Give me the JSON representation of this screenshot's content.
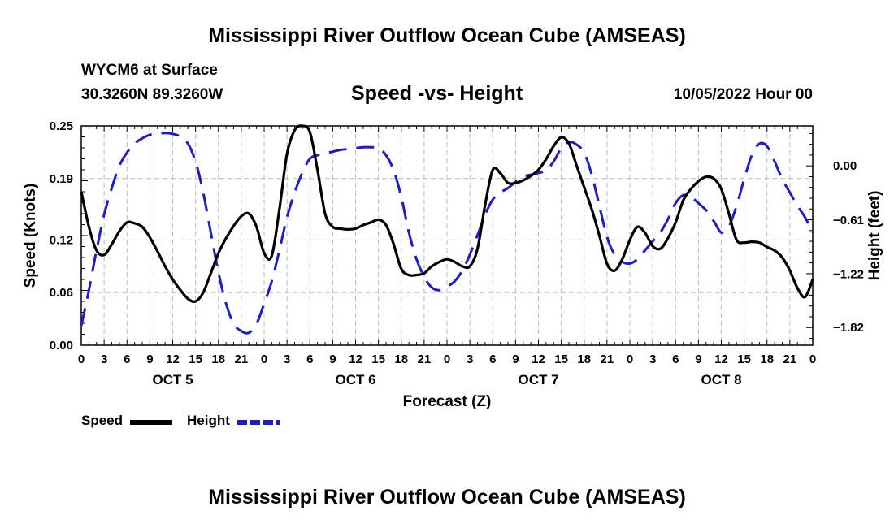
{
  "header": {
    "title": "Mississippi River Outflow Ocean Cube (AMSEAS)",
    "station": "WYCM6 at Surface",
    "coords": "30.3260N  89.3260W",
    "plot_title": "Speed -vs- Height",
    "datetime": "10/05/2022 Hour 00"
  },
  "footer": {
    "title": "Mississippi River Outflow Ocean Cube (AMSEAS)"
  },
  "legend": {
    "speed_label": "Speed",
    "height_label": "Height"
  },
  "colors": {
    "speed": "#000000",
    "height": "#1c1cc8",
    "grid": "#bbbbbb"
  },
  "chart_data": {
    "type": "line",
    "title": "Speed -vs- Height",
    "xlabel": "Forecast (Z)",
    "ylabel": "Speed (Knots)",
    "y2label": "Height (feet)",
    "x_range_hours": [
      0,
      96
    ],
    "x_ticks": [
      0,
      3,
      6,
      9,
      12,
      15,
      18,
      21,
      24,
      27,
      30,
      33,
      36,
      39,
      42,
      45,
      48,
      51,
      54,
      57,
      60,
      63,
      66,
      69,
      72,
      75,
      78,
      81,
      84,
      87,
      90,
      93,
      96
    ],
    "x_tick_labels": [
      "0",
      "3",
      "6",
      "9",
      "12",
      "15",
      "18",
      "21",
      "0",
      "3",
      "6",
      "9",
      "12",
      "15",
      "18",
      "21",
      "0",
      "3",
      "6",
      "9",
      "12",
      "15",
      "18",
      "21",
      "0",
      "3",
      "6",
      "9",
      "12",
      "15",
      "18",
      "21",
      "0"
    ],
    "day_labels": [
      {
        "label": "OCT 5",
        "hour": 12
      },
      {
        "label": "OCT 6",
        "hour": 36
      },
      {
        "label": "OCT 7",
        "hour": 60
      },
      {
        "label": "OCT 8",
        "hour": 84
      }
    ],
    "ylim": [
      0,
      0.25
    ],
    "y_ticks": [
      0.0,
      0.06,
      0.12,
      0.19,
      0.25
    ],
    "y_tick_labels": [
      "0.00",
      "0.06",
      "0.12",
      "0.19",
      "0.25"
    ],
    "y2lim": [
      -2.02,
      0.45
    ],
    "y2_ticks": [
      0.0,
      -0.61,
      -1.22,
      -1.82
    ],
    "y2_tick_labels": [
      "0.00",
      "−0.61",
      "−1.22",
      "−1.82"
    ],
    "grid": true,
    "series": [
      {
        "name": "Speed",
        "axis": "left",
        "x": [
          0,
          1,
          2,
          3,
          4,
          5,
          6,
          7,
          8,
          9,
          10,
          11,
          12,
          13,
          14,
          15,
          16,
          17,
          18,
          19,
          20,
          21,
          22,
          23,
          24,
          25,
          26,
          27,
          28,
          29,
          30,
          31,
          32,
          33,
          34,
          35,
          36,
          37,
          38,
          39,
          40,
          41,
          42,
          43,
          44,
          45,
          46,
          47,
          48,
          49,
          50,
          51,
          52,
          53,
          54,
          55,
          56,
          57,
          58,
          59,
          60,
          61,
          62,
          63,
          64,
          65,
          66,
          67,
          68,
          69,
          70,
          71,
          72,
          73,
          74,
          75,
          76,
          77,
          78,
          79,
          80,
          81,
          82,
          83,
          84,
          85,
          86,
          87,
          88,
          89,
          90,
          91,
          92,
          93,
          94,
          95,
          96
        ],
        "values": [
          0.175,
          0.135,
          0.108,
          0.103,
          0.115,
          0.13,
          0.14,
          0.139,
          0.135,
          0.123,
          0.107,
          0.09,
          0.075,
          0.063,
          0.053,
          0.05,
          0.06,
          0.082,
          0.105,
          0.122,
          0.136,
          0.147,
          0.15,
          0.135,
          0.105,
          0.102,
          0.155,
          0.218,
          0.245,
          0.25,
          0.243,
          0.2,
          0.15,
          0.135,
          0.133,
          0.132,
          0.133,
          0.137,
          0.14,
          0.143,
          0.137,
          0.115,
          0.087,
          0.08,
          0.08,
          0.082,
          0.09,
          0.095,
          0.098,
          0.095,
          0.09,
          0.09,
          0.11,
          0.16,
          0.2,
          0.196,
          0.185,
          0.185,
          0.188,
          0.193,
          0.2,
          0.212,
          0.227,
          0.237,
          0.23,
          0.205,
          0.18,
          0.155,
          0.125,
          0.093,
          0.085,
          0.098,
          0.12,
          0.135,
          0.128,
          0.113,
          0.11,
          0.122,
          0.14,
          0.165,
          0.178,
          0.187,
          0.192,
          0.19,
          0.178,
          0.15,
          0.12,
          0.117,
          0.118,
          0.117,
          0.112,
          0.108,
          0.1,
          0.085,
          0.065,
          0.055,
          0.075
        ]
      },
      {
        "name": "Height",
        "axis": "right",
        "x": [
          0,
          1,
          2,
          3,
          4,
          5,
          6,
          7,
          8,
          9,
          10,
          11,
          12,
          13,
          14,
          15,
          16,
          17,
          18,
          19,
          20,
          21,
          22,
          23,
          24,
          25,
          26,
          27,
          28,
          29,
          30,
          31,
          32,
          33,
          34,
          35,
          36,
          37,
          38,
          39,
          40,
          41,
          42,
          43,
          44,
          45,
          46,
          47,
          48,
          49,
          50,
          51,
          52,
          53,
          54,
          55,
          56,
          57,
          58,
          59,
          60,
          61,
          62,
          63,
          64,
          65,
          66,
          67,
          68,
          69,
          70,
          71,
          72,
          73,
          74,
          75,
          76,
          77,
          78,
          79,
          80,
          81,
          82,
          83,
          84,
          85,
          86,
          87,
          88,
          89,
          90,
          91,
          92,
          93,
          94,
          95,
          96
        ],
        "values": [
          -1.8,
          -1.4,
          -0.95,
          -0.55,
          -0.25,
          0.0,
          0.15,
          0.25,
          0.31,
          0.35,
          0.36,
          0.37,
          0.36,
          0.33,
          0.25,
          0.05,
          -0.3,
          -0.75,
          -1.2,
          -1.55,
          -1.78,
          -1.86,
          -1.88,
          -1.78,
          -1.55,
          -1.3,
          -0.95,
          -0.58,
          -0.3,
          -0.08,
          0.08,
          0.12,
          0.14,
          0.16,
          0.18,
          0.19,
          0.2,
          0.21,
          0.21,
          0.2,
          0.12,
          -0.05,
          -0.35,
          -0.75,
          -1.05,
          -1.25,
          -1.37,
          -1.4,
          -1.36,
          -1.3,
          -1.18,
          -1.0,
          -0.78,
          -0.55,
          -0.38,
          -0.3,
          -0.25,
          -0.18,
          -0.12,
          -0.1,
          -0.08,
          -0.05,
          0.05,
          0.2,
          0.27,
          0.24,
          0.15,
          -0.1,
          -0.45,
          -0.8,
          -1.0,
          -1.08,
          -1.1,
          -1.05,
          -0.95,
          -0.85,
          -0.75,
          -0.6,
          -0.42,
          -0.33,
          -0.35,
          -0.42,
          -0.5,
          -0.62,
          -0.75,
          -0.68,
          -0.45,
          -0.15,
          0.12,
          0.25,
          0.22,
          0.05,
          -0.15,
          -0.3,
          -0.45,
          -0.58,
          -0.75
        ]
      }
    ]
  }
}
